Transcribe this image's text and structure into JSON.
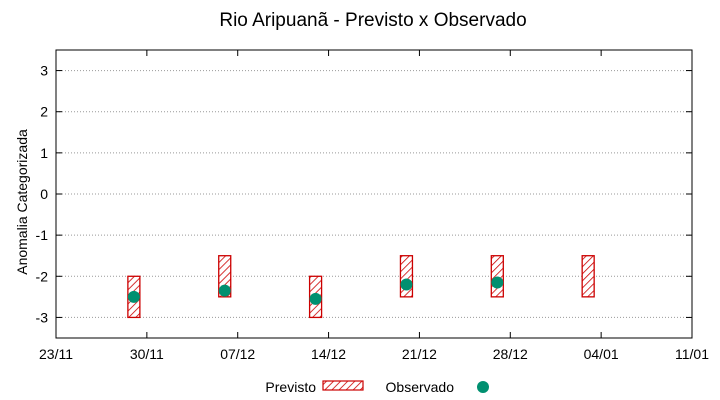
{
  "chart_data": {
    "type": "range-bar-and-scatter",
    "title": "Rio Aripuanã - Previsto x Observado",
    "xlabel": "",
    "ylabel": "Anomalia Categorizada",
    "x_tick_labels": [
      "23/11",
      "30/11",
      "07/12",
      "14/12",
      "21/12",
      "28/12",
      "04/01",
      "11/01"
    ],
    "x_tick_dates": [
      "2024-11-23",
      "2024-11-30",
      "2024-12-07",
      "2024-12-14",
      "2024-12-21",
      "2024-12-28",
      "2025-01-04",
      "2025-01-11"
    ],
    "xlim": [
      "2024-11-23",
      "2025-01-11"
    ],
    "ylim": [
      -3.5,
      3.5
    ],
    "y_ticks": [
      -3,
      -2,
      -1,
      0,
      1,
      2,
      3
    ],
    "grid": true,
    "legend_position": "bottom",
    "series": [
      {
        "name": "Previsto",
        "kind": "range",
        "color": "#cc0000",
        "points": [
          {
            "x": "2024-11-29",
            "low": -3,
            "high": -2
          },
          {
            "x": "2024-12-06",
            "low": -2.5,
            "high": -1.5
          },
          {
            "x": "2024-12-13",
            "low": -3,
            "high": -2
          },
          {
            "x": "2024-12-20",
            "low": -2.5,
            "high": -1.5
          },
          {
            "x": "2024-12-27",
            "low": -2.5,
            "high": -1.5
          },
          {
            "x": "2025-01-03",
            "low": -2.5,
            "high": -1.5
          }
        ]
      },
      {
        "name": "Observado",
        "kind": "point",
        "color": "#009070",
        "points": [
          {
            "x": "2024-11-29",
            "y": -2.5
          },
          {
            "x": "2024-12-06",
            "y": -2.35
          },
          {
            "x": "2024-12-13",
            "y": -2.55
          },
          {
            "x": "2024-12-20",
            "y": -2.2
          },
          {
            "x": "2024-12-27",
            "y": -2.15
          }
        ]
      }
    ]
  }
}
